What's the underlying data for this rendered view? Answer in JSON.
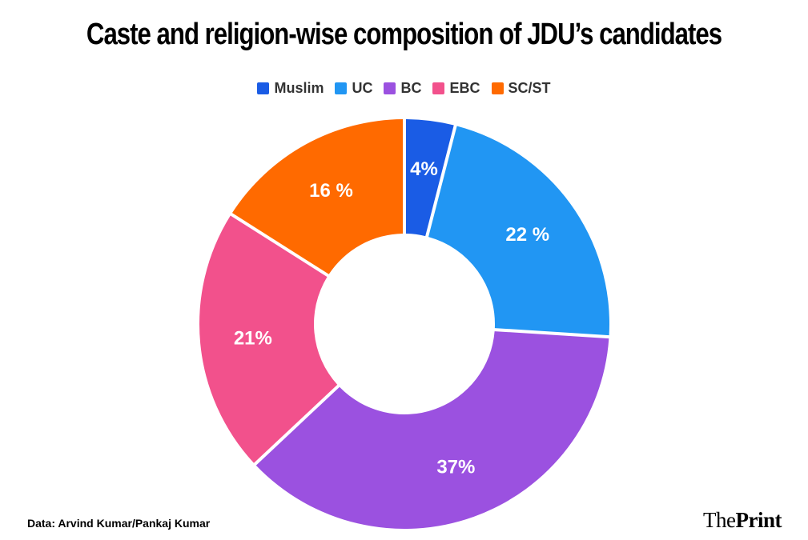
{
  "header": {
    "title": "Caste and religion-wise composition of JDU’s candidates"
  },
  "chart_data": {
    "type": "pie",
    "donut": true,
    "title": "Caste and religion-wise composition of JDU’s candidates",
    "legend_position": "top",
    "slices": [
      {
        "name": "Muslim",
        "value": 4,
        "label": "4%",
        "color": "#1a5ce5"
      },
      {
        "name": "UC",
        "value": 22,
        "label": "22 %",
        "color": "#2196f3"
      },
      {
        "name": "BC",
        "value": 37,
        "label": "37%",
        "color": "#9b51e0"
      },
      {
        "name": "EBC",
        "value": 21,
        "label": "21%",
        "color": "#f2518c"
      },
      {
        "name": "SC/ST",
        "value": 16,
        "label": "16 %",
        "color": "#ff6a00"
      }
    ]
  },
  "footer": {
    "source": "Data: Arvind Kumar/Pankaj Kumar",
    "brand_part1": "The",
    "brand_part2": "Print"
  }
}
